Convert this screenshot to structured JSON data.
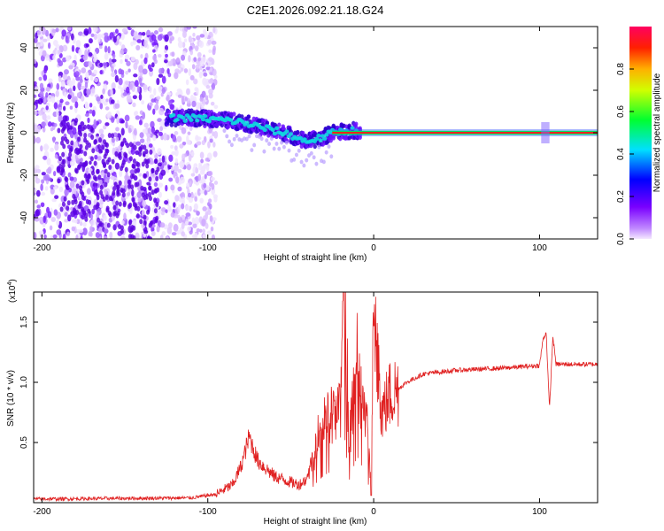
{
  "title": "C2E1.2026.092.21.18.G24",
  "chart_data": [
    {
      "type": "heatmap",
      "xlabel": "Height of straight line (km)",
      "ylabel": "Frequency (Hz)",
      "xlim": [
        -205,
        135
      ],
      "ylim": [
        -50,
        50
      ],
      "xticks": [
        -200,
        -100,
        0,
        100
      ],
      "yticks": [
        -40,
        -20,
        0,
        20,
        40
      ],
      "colorbar": {
        "label": "Normalized spectral amplitude",
        "range": [
          0,
          1
        ],
        "ticks": [
          0.0,
          0.2,
          0.4,
          0.6,
          0.8
        ]
      },
      "ridge": {
        "x": [
          -125,
          -110,
          -100,
          -90,
          -80,
          -70,
          -60,
          -50,
          -45,
          -40,
          -35,
          -30,
          -25,
          -20,
          -15,
          -10,
          -5,
          0,
          20,
          50,
          100,
          103,
          106,
          135
        ],
        "y": [
          7,
          7,
          6.5,
          6,
          5,
          3,
          1,
          -1,
          -3,
          -4,
          -3,
          -2,
          0,
          0.5,
          1,
          1,
          0.5,
          0,
          0,
          0,
          0,
          0,
          0,
          0
        ]
      }
    },
    {
      "type": "line",
      "xlabel": "Height of straight line (km)",
      "ylabel": "SNR (10 * v/v)",
      "yscale_label": "(x10",
      "yscale_exp": "4",
      "xlim": [
        -205,
        135
      ],
      "ylim": [
        0,
        1.75
      ],
      "xticks": [
        -200,
        -100,
        0,
        100
      ],
      "yticks": [
        0.5,
        1.0,
        1.5
      ],
      "yticklabels": [
        "0.5",
        "1.0",
        "1.5"
      ],
      "series_color": "#e02020",
      "key_points": {
        "x": [
          -205,
          -110,
          -95,
          -85,
          -80,
          -75,
          -70,
          -60,
          -50,
          -45,
          -40,
          -35,
          -30,
          -25,
          -20,
          -18,
          -15,
          -10,
          -5,
          -2,
          0,
          5,
          10,
          20,
          30,
          50,
          80,
          100,
          102,
          104,
          106,
          108,
          110,
          135
        ],
        "y": [
          0.03,
          0.04,
          0.07,
          0.15,
          0.3,
          0.55,
          0.35,
          0.22,
          0.17,
          0.15,
          0.2,
          0.45,
          0.65,
          0.75,
          0.8,
          1.8,
          0.5,
          1.1,
          0.7,
          0.25,
          1.45,
          0.75,
          0.9,
          1.0,
          1.07,
          1.1,
          1.12,
          1.14,
          1.35,
          1.42,
          0.77,
          1.38,
          1.15,
          1.15
        ]
      }
    }
  ]
}
